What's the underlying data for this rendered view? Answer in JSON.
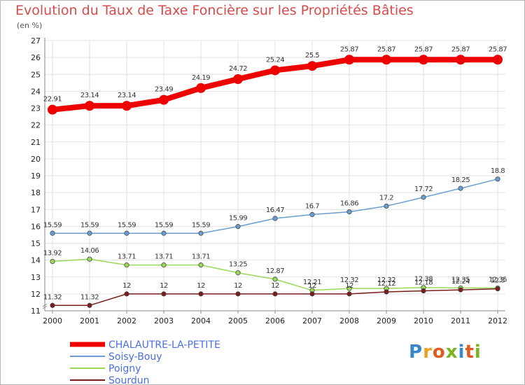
{
  "title": "Evolution du Taux de Taxe Foncière sur les Propriétés Bâties",
  "unit": "(en %)",
  "logo": {
    "text": "Proxiti",
    "letter_colors": [
      "#3a86c8",
      "#e8a21c",
      "#e05a20",
      "#7ab31e",
      "#3a86c8",
      "#e05a20",
      "#7ab31e"
    ]
  },
  "chart_data": {
    "type": "line",
    "x": [
      2000,
      2001,
      2002,
      2003,
      2004,
      2005,
      2006,
      2007,
      2008,
      2009,
      2010,
      2011,
      2012
    ],
    "ylim": [
      11,
      27
    ],
    "yticks": [
      11,
      12,
      13,
      14,
      15,
      16,
      17,
      18,
      19,
      20,
      21,
      22,
      23,
      24,
      25,
      26,
      27
    ],
    "grid": true,
    "legend_position": "bottom-left",
    "series": [
      {
        "name": "CHALAUTRE-LA-PETITE",
        "color": "#ee0000",
        "values": [
          22.91,
          23.14,
          23.14,
          23.49,
          24.19,
          24.72,
          25.24,
          25.5,
          25.87,
          25.87,
          25.87,
          25.87,
          25.87
        ],
        "labels": [
          "22.91",
          "23.14",
          "23.14",
          "23.49",
          "24.19",
          "24.72",
          "25.24",
          "25.5",
          "25.87",
          "25.87",
          "25.87",
          "25.87",
          "25.87"
        ]
      },
      {
        "name": "Soisy-Bouy",
        "color": "#6a9ed0",
        "values": [
          15.59,
          15.59,
          15.59,
          15.59,
          15.59,
          15.99,
          16.47,
          16.7,
          16.86,
          17.2,
          17.72,
          18.25,
          18.8
        ],
        "labels": [
          "15.59",
          "15.59",
          "15.59",
          "15.59",
          "15.59",
          "15.99",
          "16.47",
          "16.7",
          "16.86",
          "17.2",
          "17.72",
          "18.25",
          "18.8"
        ]
      },
      {
        "name": "Poigny",
        "color": "#9bd85a",
        "values": [
          13.92,
          14.06,
          13.71,
          13.71,
          13.71,
          13.25,
          12.87,
          12.21,
          12.32,
          12.32,
          12.38,
          12.35,
          12.35
        ],
        "labels": [
          "13.92",
          "14.06",
          "13.71",
          "13.71",
          "13.71",
          "13.25",
          "12.87",
          "12.21",
          "12.32",
          "12.32",
          "12.38",
          "12.35",
          "12.35"
        ]
      },
      {
        "name": "Sourdun",
        "color": "#7a1c1c",
        "values": [
          11.32,
          11.32,
          12,
          12,
          12,
          12,
          12,
          12,
          12,
          12.12,
          12.18,
          12.24,
          12.3
        ],
        "labels": [
          "11.32",
          "11.32",
          "12",
          "12",
          "12",
          "12",
          "12",
          "12",
          "12",
          "12.12",
          "12.18",
          "12.24",
          "12.3"
        ]
      }
    ]
  }
}
